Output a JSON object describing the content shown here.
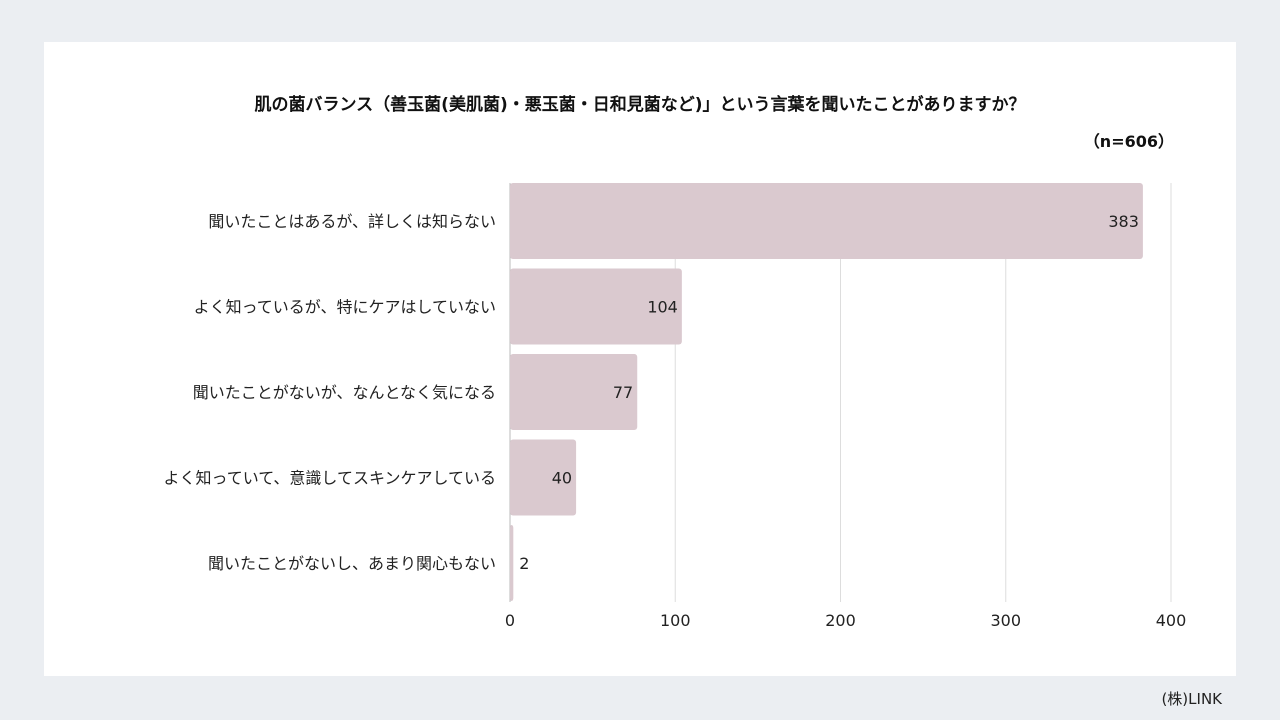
{
  "chart_data": {
    "type": "bar",
    "orientation": "horizontal",
    "title": "肌の菌バランス（善玉菌(美肌菌)・悪玉菌・日和見菌など)」という言葉を聞いたことがありますか？",
    "subtitle": "（n=606）",
    "categories": [
      "聞いたことはあるが、詳しくは知らない",
      "よく知っているが、特にケアはしていない",
      "聞いたことがないが、なんとなく気になる",
      "よく知っていて、意識してスキンケアしている",
      "聞いたことがないし、あまり関心もない"
    ],
    "values": [
      383,
      104,
      77,
      40,
      2
    ],
    "xlim": [
      0,
      400
    ],
    "xticks": [
      0,
      100,
      200,
      300,
      400
    ],
    "grid": true,
    "bar_color": "#dac9cf"
  },
  "footer": "(株)LINK"
}
